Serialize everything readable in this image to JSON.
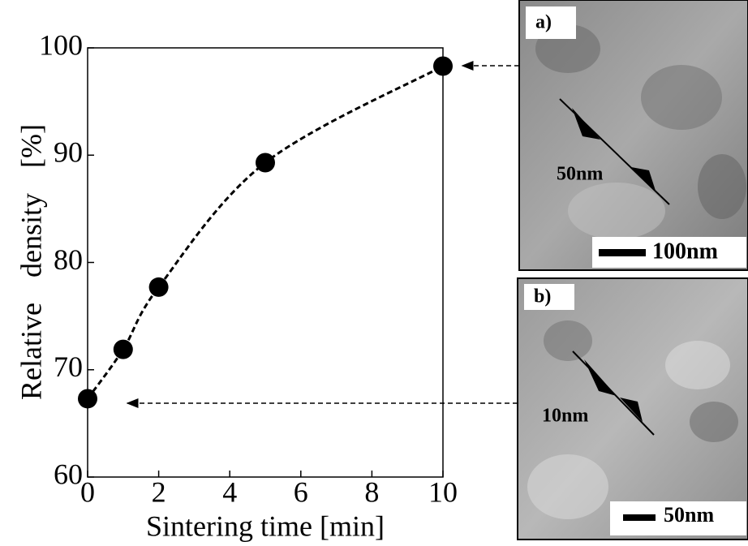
{
  "chart_data": {
    "type": "line",
    "xlabel": "Sintering time [min]",
    "ylabel": "Relative density [%]",
    "x": [
      0,
      1,
      2,
      5,
      10
    ],
    "series": [
      {
        "color": "#000000",
        "values": [
          67.3,
          71.9,
          77.7,
          89.3,
          98.3
        ]
      }
    ],
    "xlim": [
      0,
      10
    ],
    "ylim": [
      60,
      100
    ],
    "xticks": [
      0,
      2,
      4,
      6,
      8,
      10
    ],
    "yticks": [
      60,
      70,
      80,
      90,
      100
    ]
  },
  "images": [
    {
      "label": "a)",
      "feature_size": "50nm",
      "scale_bar": "100nm"
    },
    {
      "label": "b)",
      "feature_size": "10nm",
      "scale_bar": "50nm"
    }
  ]
}
